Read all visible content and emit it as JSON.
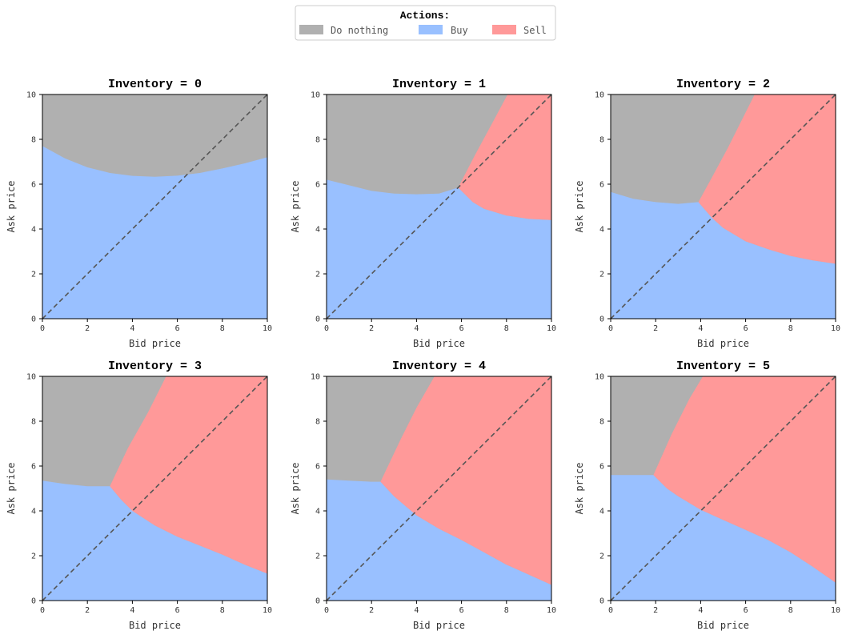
{
  "legend": {
    "title": "Actions:",
    "placement": "top-center",
    "items": [
      {
        "label": "Do nothing",
        "color": "#b0b0b0"
      },
      {
        "label": "Buy",
        "color": "#99c0ff"
      },
      {
        "label": "Sell",
        "color": "#ff9999"
      }
    ]
  },
  "chart_data": [
    {
      "type": "area",
      "title": "Inventory = 0",
      "xlabel": "Bid price",
      "ylabel": "Ask price",
      "xlim": [
        0,
        10
      ],
      "ylim": [
        0,
        10
      ],
      "xticks": [
        "0",
        "2",
        "4",
        "6",
        "8",
        "10"
      ],
      "yticks": [
        "0",
        "2",
        "4",
        "6",
        "8",
        "10"
      ],
      "diagonal": "y = x (dashed)",
      "regions": [
        {
          "action": "Do nothing",
          "color": "#b0b0b0",
          "boundary": "upper area"
        },
        {
          "action": "Buy",
          "color": "#99c0ff",
          "boundary": "below buy boundary"
        }
      ],
      "buy_boundary": [
        [
          0,
          7.7
        ],
        [
          1,
          7.15
        ],
        [
          2,
          6.75
        ],
        [
          3,
          6.5
        ],
        [
          4,
          6.37
        ],
        [
          5,
          6.33
        ],
        [
          6,
          6.38
        ],
        [
          7,
          6.5
        ],
        [
          8,
          6.7
        ],
        [
          9,
          6.93
        ],
        [
          10,
          7.2
        ]
      ],
      "sell_boundary": []
    },
    {
      "type": "area",
      "title": "Inventory = 1",
      "xlabel": "Bid price",
      "ylabel": "Ask price",
      "xlim": [
        0,
        10
      ],
      "ylim": [
        0,
        10
      ],
      "xticks": [
        "0",
        "2",
        "4",
        "6",
        "8",
        "10"
      ],
      "yticks": [
        "0",
        "2",
        "4",
        "6",
        "8",
        "10"
      ],
      "diagonal": "y = x (dashed)",
      "buy_boundary": [
        [
          0,
          6.2
        ],
        [
          1,
          5.95
        ],
        [
          2,
          5.7
        ],
        [
          3,
          5.58
        ],
        [
          4,
          5.55
        ],
        [
          5,
          5.58
        ],
        [
          5.85,
          5.85
        ]
      ],
      "sell_boundary": [
        [
          5.85,
          5.85
        ],
        [
          6.5,
          5.2
        ],
        [
          7,
          4.9
        ],
        [
          8,
          4.6
        ],
        [
          9,
          4.45
        ],
        [
          10,
          4.4
        ]
      ],
      "sell_upper_edge": [
        [
          5.85,
          5.85
        ],
        [
          6.6,
          7.3
        ],
        [
          7.3,
          8.6
        ],
        [
          8.05,
          10
        ]
      ]
    },
    {
      "type": "area",
      "title": "Inventory = 2",
      "xlabel": "Bid price",
      "ylabel": "Ask price",
      "xlim": [
        0,
        10
      ],
      "ylim": [
        0,
        10
      ],
      "xticks": [
        "0",
        "2",
        "4",
        "6",
        "8",
        "10"
      ],
      "yticks": [
        "0",
        "2",
        "4",
        "6",
        "8",
        "10"
      ],
      "diagonal": "y = x (dashed)",
      "buy_boundary": [
        [
          0,
          5.65
        ],
        [
          1,
          5.35
        ],
        [
          2,
          5.2
        ],
        [
          3,
          5.12
        ],
        [
          3.9,
          5.2
        ]
      ],
      "sell_boundary": [
        [
          3.9,
          5.2
        ],
        [
          4.5,
          4.5
        ],
        [
          5,
          4.05
        ],
        [
          6,
          3.45
        ],
        [
          7,
          3.1
        ],
        [
          8,
          2.8
        ],
        [
          9,
          2.6
        ],
        [
          10,
          2.45
        ]
      ],
      "sell_upper_edge": [
        [
          3.9,
          5.2
        ],
        [
          4.5,
          6.3
        ],
        [
          5.2,
          7.6
        ],
        [
          5.9,
          9
        ],
        [
          6.4,
          10
        ]
      ]
    },
    {
      "type": "area",
      "title": "Inventory = 3",
      "xlabel": "Bid price",
      "ylabel": "Ask price",
      "xlim": [
        0,
        10
      ],
      "ylim": [
        0,
        10
      ],
      "xticks": [
        "0",
        "2",
        "4",
        "6",
        "8",
        "10"
      ],
      "yticks": [
        "0",
        "2",
        "4",
        "6",
        "8",
        "10"
      ],
      "diagonal": "y = x (dashed)",
      "buy_boundary": [
        [
          0,
          5.35
        ],
        [
          1,
          5.2
        ],
        [
          2,
          5.1
        ],
        [
          3,
          5.1
        ]
      ],
      "sell_boundary": [
        [
          3,
          5.1
        ],
        [
          3.5,
          4.5
        ],
        [
          4,
          4.0
        ],
        [
          5,
          3.35
        ],
        [
          6,
          2.85
        ],
        [
          7,
          2.45
        ],
        [
          8,
          2.05
        ],
        [
          9,
          1.6
        ],
        [
          10,
          1.2
        ]
      ],
      "sell_upper_edge": [
        [
          3,
          5.1
        ],
        [
          3.8,
          6.8
        ],
        [
          4.7,
          8.4
        ],
        [
          5.5,
          10
        ]
      ]
    },
    {
      "type": "area",
      "title": "Inventory = 4",
      "xlabel": "Bid price",
      "ylabel": "Ask price",
      "xlim": [
        0,
        10
      ],
      "ylim": [
        0,
        10
      ],
      "xticks": [
        "0",
        "2",
        "4",
        "6",
        "8",
        "10"
      ],
      "yticks": [
        "0",
        "2",
        "4",
        "6",
        "8",
        "10"
      ],
      "diagonal": "y = x (dashed)",
      "buy_boundary": [
        [
          0,
          5.4
        ],
        [
          1,
          5.35
        ],
        [
          2,
          5.3
        ],
        [
          2.4,
          5.3
        ]
      ],
      "sell_boundary": [
        [
          2.4,
          5.3
        ],
        [
          3,
          4.65
        ],
        [
          4,
          3.8
        ],
        [
          5,
          3.2
        ],
        [
          6,
          2.7
        ],
        [
          7,
          2.15
        ],
        [
          8,
          1.6
        ],
        [
          9,
          1.15
        ],
        [
          10,
          0.7
        ]
      ],
      "sell_upper_edge": [
        [
          2.4,
          5.3
        ],
        [
          3.3,
          7.2
        ],
        [
          4,
          8.6
        ],
        [
          4.8,
          10
        ]
      ]
    },
    {
      "type": "area",
      "title": "Inventory = 5",
      "xlabel": "Bid price",
      "ylabel": "Ask price",
      "xlim": [
        0,
        10
      ],
      "ylim": [
        0,
        10
      ],
      "xticks": [
        "0",
        "2",
        "4",
        "6",
        "8",
        "10"
      ],
      "yticks": [
        "0",
        "2",
        "4",
        "6",
        "8",
        "10"
      ],
      "diagonal": "y = x (dashed)",
      "buy_boundary": [
        [
          0,
          5.6
        ],
        [
          1,
          5.6
        ],
        [
          1.9,
          5.6
        ]
      ],
      "sell_boundary": [
        [
          1.9,
          5.6
        ],
        [
          2.5,
          5.0
        ],
        [
          3,
          4.65
        ],
        [
          4,
          4.05
        ],
        [
          5,
          3.6
        ],
        [
          6,
          3.15
        ],
        [
          7,
          2.7
        ],
        [
          8,
          2.15
        ],
        [
          9,
          1.5
        ],
        [
          10,
          0.8
        ]
      ],
      "sell_upper_edge": [
        [
          1.9,
          5.6
        ],
        [
          2.7,
          7.4
        ],
        [
          3.5,
          9.0
        ],
        [
          4.1,
          10
        ]
      ]
    }
  ]
}
